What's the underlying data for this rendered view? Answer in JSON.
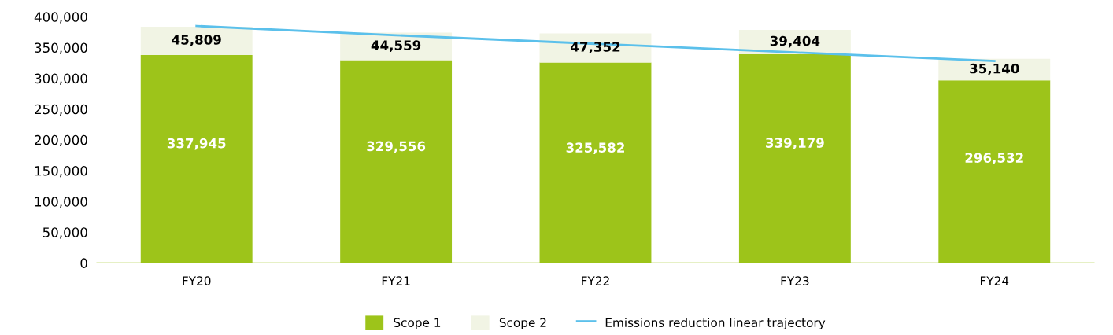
{
  "chart_data": {
    "type": "bar",
    "stacked": true,
    "categories": [
      "FY20",
      "FY21",
      "FY22",
      "FY23",
      "FY24"
    ],
    "series": [
      {
        "name": "Scope 1",
        "color": "#9dc41a",
        "values": [
          337945,
          329556,
          325582,
          339179,
          296532
        ],
        "value_labels": [
          "337,945",
          "329,556",
          "325,582",
          "339,179",
          "296,532"
        ]
      },
      {
        "name": "Scope 2",
        "color": "#f1f4e4",
        "values": [
          45809,
          44559,
          47352,
          39404,
          35140
        ],
        "value_labels": [
          "45,809",
          "44,559",
          "47,352",
          "39,404",
          "35,140"
        ]
      },
      {
        "name": "Emissions reduction linear trajectory",
        "type": "line",
        "color": "#5bc0eb",
        "values": [
          385000,
          370000,
          356000,
          342000,
          328000
        ]
      }
    ],
    "ylim": [
      0,
      400000
    ],
    "yticks": [
      {
        "value": 0,
        "label": "0"
      },
      {
        "value": 50000,
        "label": "50,000"
      },
      {
        "value": 100000,
        "label": "100,000"
      },
      {
        "value": 150000,
        "label": "150,000"
      },
      {
        "value": 200000,
        "label": "200,000"
      },
      {
        "value": 250000,
        "label": "250,000"
      },
      {
        "value": 300000,
        "label": "300,000"
      },
      {
        "value": 350000,
        "label": "350,000"
      },
      {
        "value": 400000,
        "label": "400,000"
      }
    ],
    "grid": false,
    "legend": "bottom",
    "line_style": "solid",
    "marker": "none"
  }
}
